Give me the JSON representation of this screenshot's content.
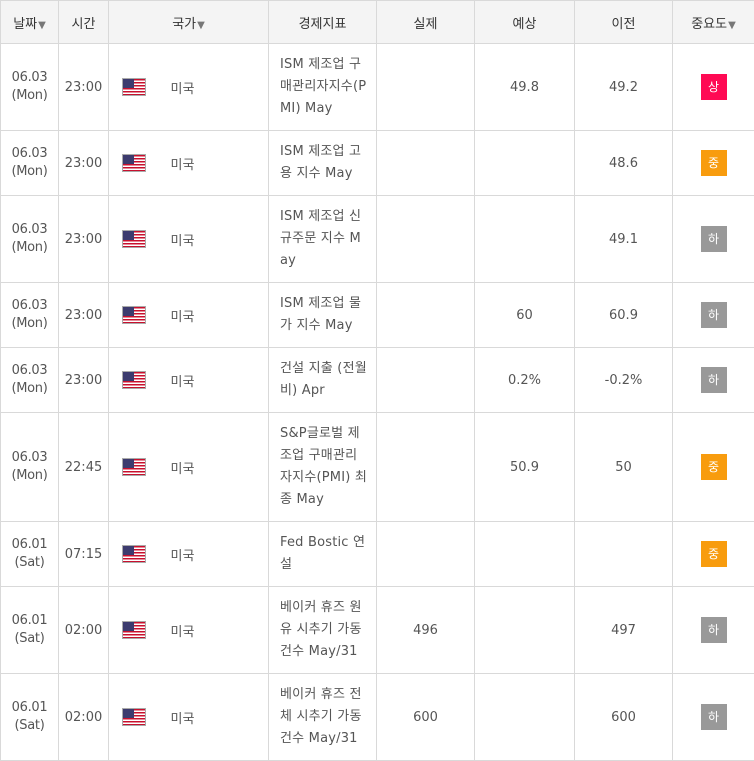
{
  "header": {
    "date": "날짜",
    "time": "시간",
    "country": "국가",
    "indicator": "경제지표",
    "actual": "실제",
    "forecast": "예상",
    "previous": "이전",
    "importance": "중요도",
    "sort_caret": "▼"
  },
  "importance_colors": {
    "상": "#ff0a54",
    "중": "#f89c0e",
    "하": "#999999"
  },
  "rows": [
    {
      "date": "06.03",
      "day": "(Mon)",
      "time": "23:00",
      "country": "미국",
      "indicator": "ISM 제조업 구매관리자지수(PMI) May",
      "actual": "",
      "forecast": "49.8",
      "previous": "49.2",
      "importance": "상"
    },
    {
      "date": "06.03",
      "day": "(Mon)",
      "time": "23:00",
      "country": "미국",
      "indicator": "ISM 제조업 고용 지수 May",
      "actual": "",
      "forecast": "",
      "previous": "48.6",
      "importance": "중"
    },
    {
      "date": "06.03",
      "day": "(Mon)",
      "time": "23:00",
      "country": "미국",
      "indicator": "ISM 제조업 신규주문 지수 May",
      "actual": "",
      "forecast": "",
      "previous": "49.1",
      "importance": "하"
    },
    {
      "date": "06.03",
      "day": "(Mon)",
      "time": "23:00",
      "country": "미국",
      "indicator": "ISM 제조업 물가 지수 May",
      "actual": "",
      "forecast": "60",
      "previous": "60.9",
      "importance": "하"
    },
    {
      "date": "06.03",
      "day": "(Mon)",
      "time": "23:00",
      "country": "미국",
      "indicator": "건설 지출 (전월비) Apr",
      "actual": "",
      "forecast": "0.2%",
      "previous": "-0.2%",
      "importance": "하"
    },
    {
      "date": "06.03",
      "day": "(Mon)",
      "time": "22:45",
      "country": "미국",
      "indicator": "S&P글로벌 제조업 구매관리자지수(PMI) 최종 May",
      "actual": "",
      "forecast": "50.9",
      "previous": "50",
      "importance": "중"
    },
    {
      "date": "06.01",
      "day": "(Sat)",
      "time": "07:15",
      "country": "미국",
      "indicator": "Fed Bostic 연설",
      "actual": "",
      "forecast": "",
      "previous": "",
      "importance": "중"
    },
    {
      "date": "06.01",
      "day": "(Sat)",
      "time": "02:00",
      "country": "미국",
      "indicator": "베이커 휴즈 원유 시추기 가동 건수 May/31",
      "actual": "496",
      "forecast": "",
      "previous": "497",
      "importance": "하"
    },
    {
      "date": "06.01",
      "day": "(Sat)",
      "time": "02:00",
      "country": "미국",
      "indicator": "베이커 휴즈 전체 시추기 가동 건수 May/31",
      "actual": "600",
      "forecast": "",
      "previous": "600",
      "importance": "하"
    }
  ]
}
